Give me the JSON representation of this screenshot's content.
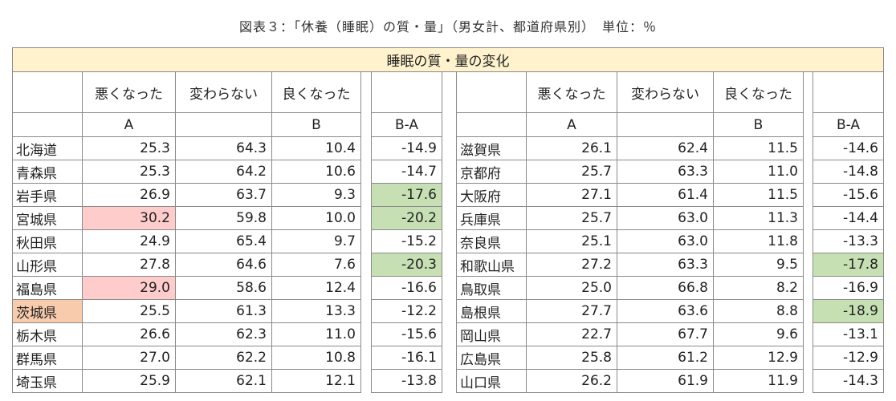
{
  "figure_title": "図表３：「休養（睡眠）の質・量」（男女計、都道府県別）　単位：％",
  "banner": "睡眠の質・量の変化",
  "headers": {
    "worse": "悪くなった",
    "same": "変わらない",
    "better": "良くなった",
    "a_label": "A",
    "b_label": "B",
    "diff_label": "B-A"
  },
  "highlight_colors": {
    "red": "#ffcccc",
    "green": "#c6e0b4",
    "orange": "#f8cbad",
    "banner": "#fff2cc"
  },
  "left_rows": [
    {
      "pref": "北海道",
      "a": "25.3",
      "same": "64.3",
      "b": "10.4",
      "diff": "-14.9"
    },
    {
      "pref": "青森県",
      "a": "25.3",
      "same": "64.2",
      "b": "10.6",
      "diff": "-14.7"
    },
    {
      "pref": "岩手県",
      "a": "26.9",
      "same": "63.7",
      "b": "9.3",
      "diff": "-17.6",
      "diff_hl": "green"
    },
    {
      "pref": "宮城県",
      "a": "30.2",
      "same": "59.8",
      "b": "10.0",
      "diff": "-20.2",
      "a_hl": "red",
      "diff_hl": "green"
    },
    {
      "pref": "秋田県",
      "a": "24.9",
      "same": "65.4",
      "b": "9.7",
      "diff": "-15.2"
    },
    {
      "pref": "山形県",
      "a": "27.8",
      "same": "64.6",
      "b": "7.6",
      "diff": "-20.3",
      "diff_hl": "green"
    },
    {
      "pref": "福島県",
      "a": "29.0",
      "same": "58.6",
      "b": "12.4",
      "diff": "-16.6",
      "a_hl": "red"
    },
    {
      "pref": "茨城県",
      "a": "25.5",
      "same": "61.3",
      "b": "13.3",
      "diff": "-12.2",
      "pref_hl": "orange"
    },
    {
      "pref": "栃木県",
      "a": "26.6",
      "same": "62.3",
      "b": "11.0",
      "diff": "-15.6"
    },
    {
      "pref": "群馬県",
      "a": "27.0",
      "same": "62.2",
      "b": "10.8",
      "diff": "-16.1"
    },
    {
      "pref": "埼玉県",
      "a": "25.9",
      "same": "62.1",
      "b": "12.1",
      "diff": "-13.8"
    }
  ],
  "right_rows": [
    {
      "pref": "滋賀県",
      "a": "26.1",
      "same": "62.4",
      "b": "11.5",
      "diff": "-14.6"
    },
    {
      "pref": "京都府",
      "a": "25.7",
      "same": "63.3",
      "b": "11.0",
      "diff": "-14.8"
    },
    {
      "pref": "大阪府",
      "a": "27.1",
      "same": "61.4",
      "b": "11.5",
      "diff": "-15.6"
    },
    {
      "pref": "兵庫県",
      "a": "25.7",
      "same": "63.0",
      "b": "11.3",
      "diff": "-14.4"
    },
    {
      "pref": "奈良県",
      "a": "25.1",
      "same": "63.0",
      "b": "11.8",
      "diff": "-13.3"
    },
    {
      "pref": "和歌山県",
      "a": "27.2",
      "same": "63.3",
      "b": "9.5",
      "diff": "-17.8",
      "diff_hl": "green"
    },
    {
      "pref": "鳥取県",
      "a": "25.0",
      "same": "66.8",
      "b": "8.2",
      "diff": "-16.9"
    },
    {
      "pref": "島根県",
      "a": "27.7",
      "same": "63.6",
      "b": "8.8",
      "diff": "-18.9",
      "diff_hl": "green"
    },
    {
      "pref": "岡山県",
      "a": "22.7",
      "same": "67.7",
      "b": "9.6",
      "diff": "-13.1"
    },
    {
      "pref": "広島県",
      "a": "25.8",
      "same": "61.2",
      "b": "12.9",
      "diff": "-12.9"
    },
    {
      "pref": "山口県",
      "a": "26.2",
      "same": "61.9",
      "b": "11.9",
      "diff": "-14.3"
    }
  ]
}
